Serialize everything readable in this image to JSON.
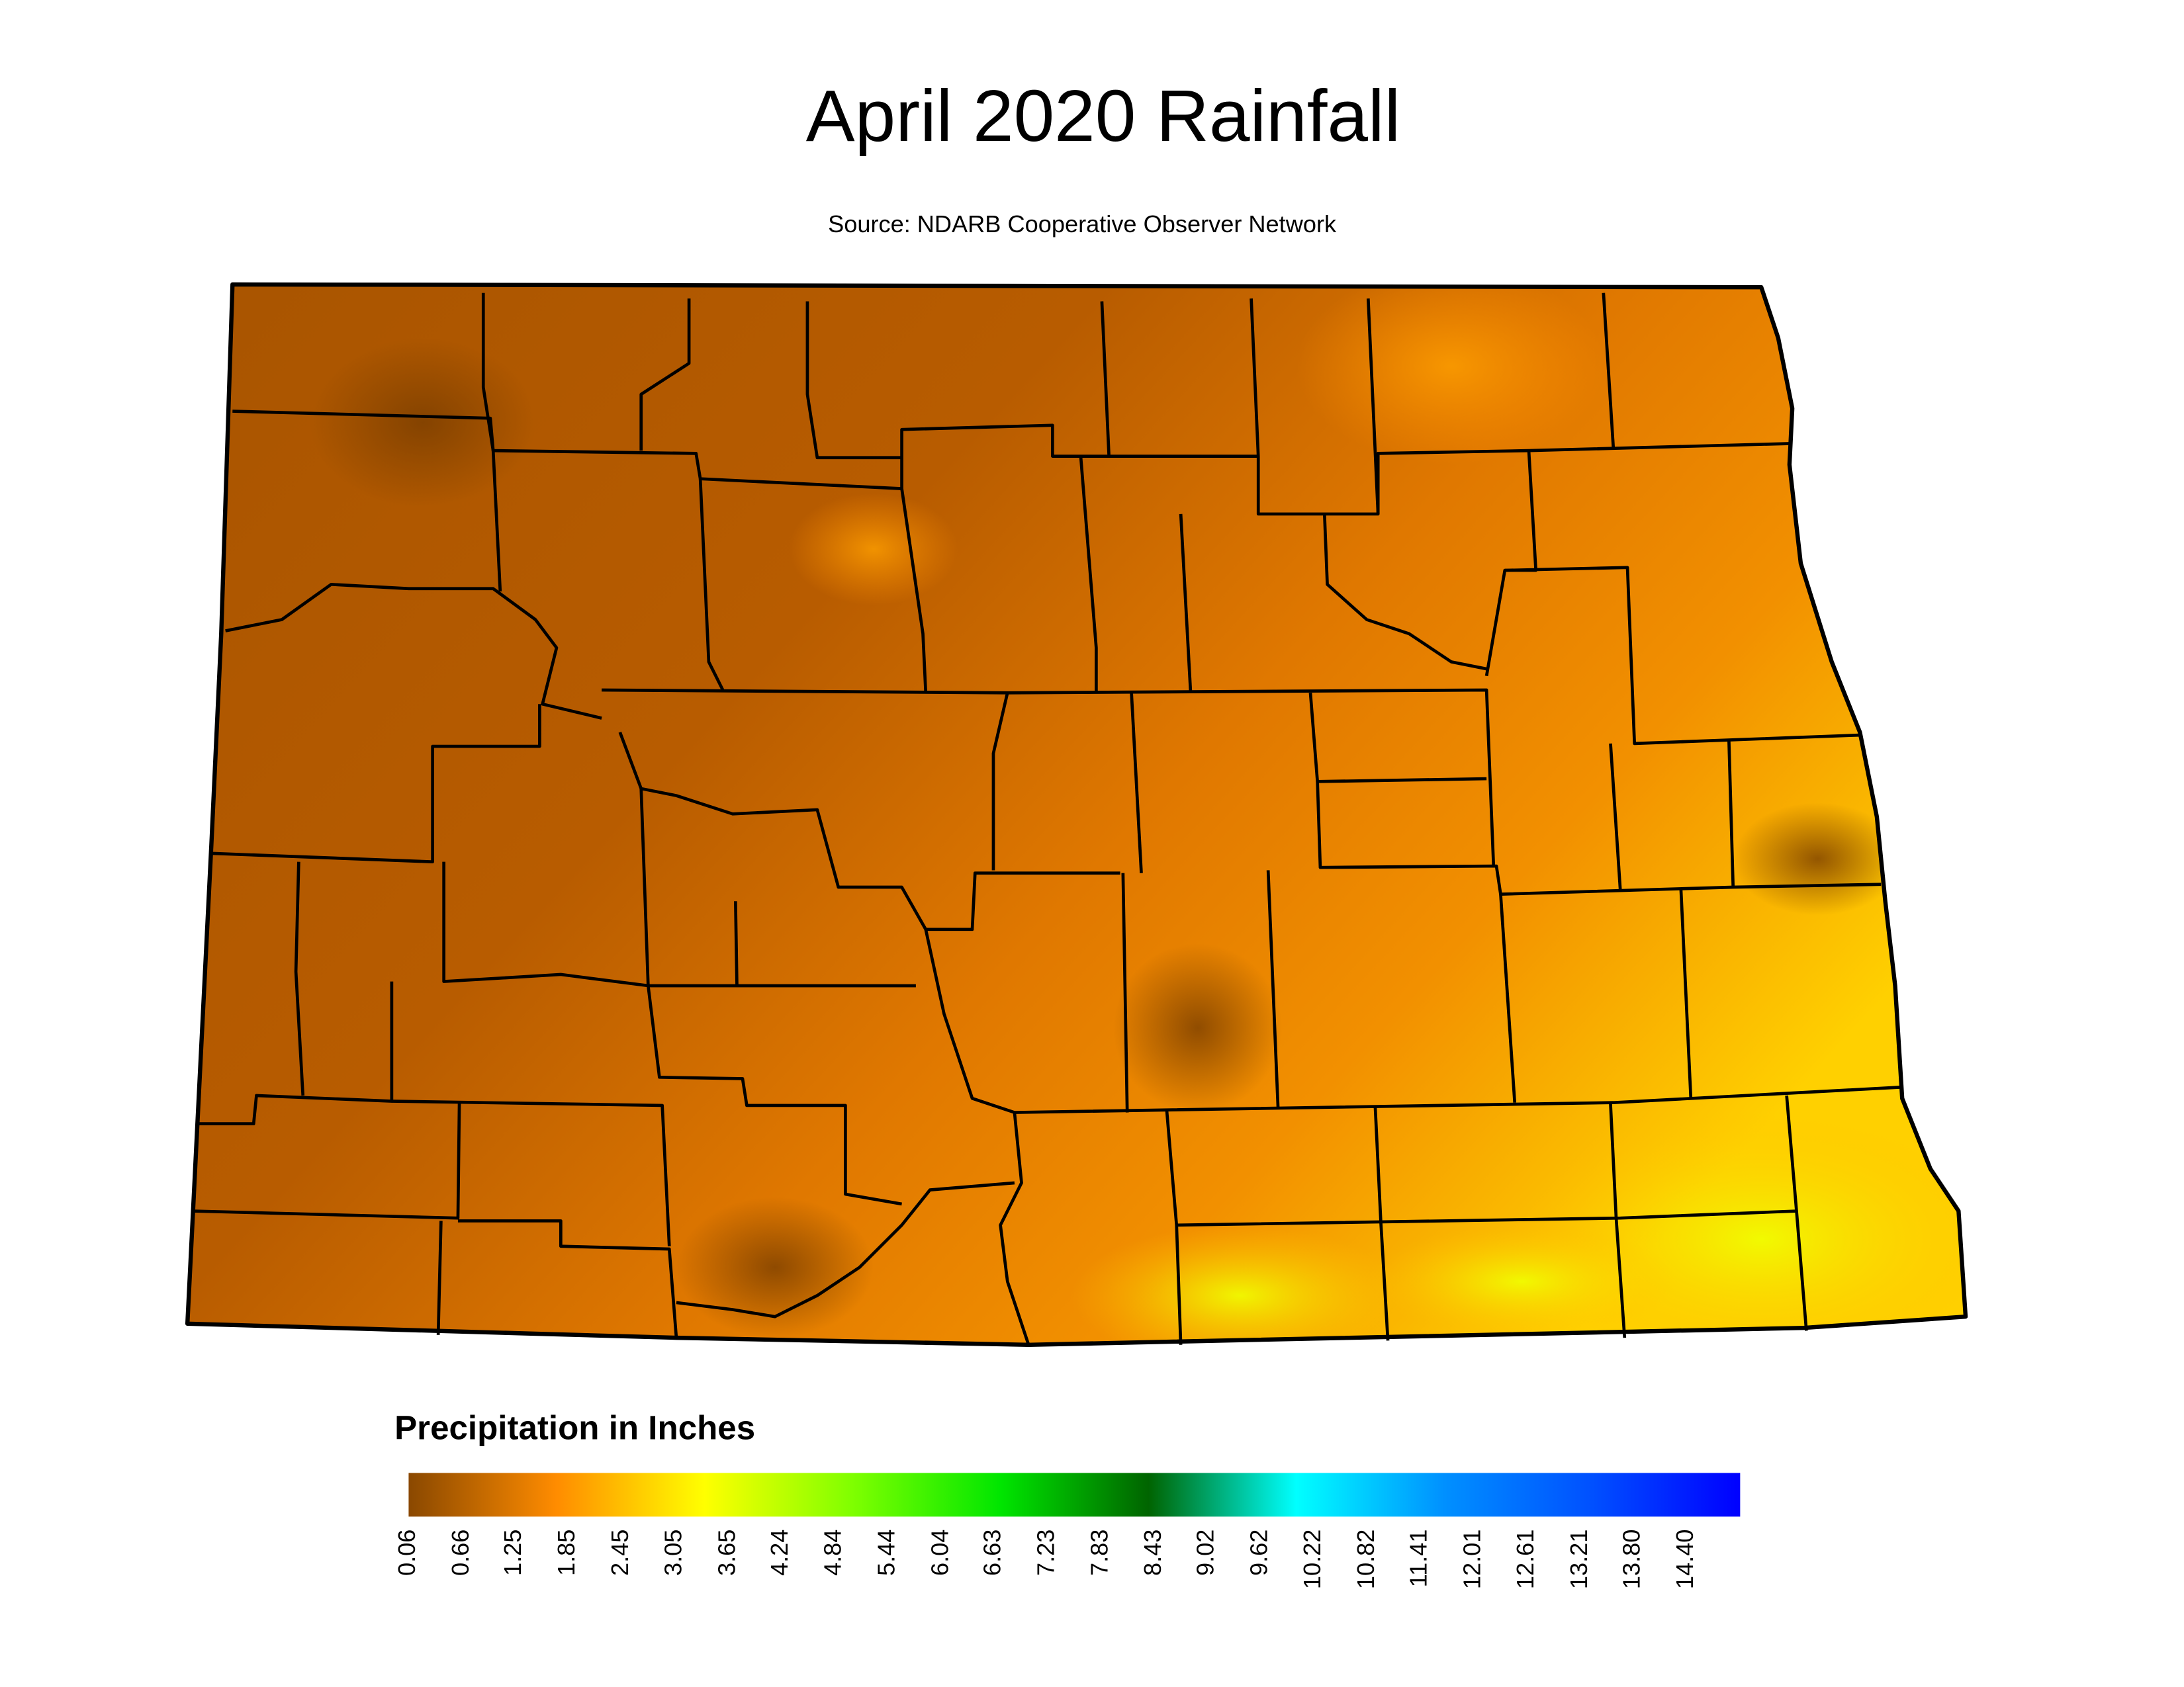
{
  "title": "April 2020 Rainfall",
  "source": "Source: NDARB Cooperative Observer Network",
  "legend": {
    "title": "Precipitation in Inches",
    "lim": [
      0.06,
      15.0
    ],
    "colors": [
      "#8a4800",
      "#ff8c00",
      "#ffff00",
      "#7fff00",
      "#00e600",
      "#006400",
      "#00ffff",
      "#0090ff",
      "#0050ff",
      "#0000ff"
    ],
    "ticks": [
      0.06,
      0.66,
      1.25,
      1.85,
      2.45,
      3.05,
      3.65,
      4.24,
      4.84,
      5.44,
      6.04,
      6.63,
      7.23,
      7.83,
      8.43,
      9.02,
      9.62,
      10.22,
      10.82,
      11.41,
      12.01,
      12.61,
      13.21,
      {
        "value": 13.8,
        "label": "13.80"
      },
      {
        "value": 14.4,
        "label": "14.40"
      }
    ]
  }
}
